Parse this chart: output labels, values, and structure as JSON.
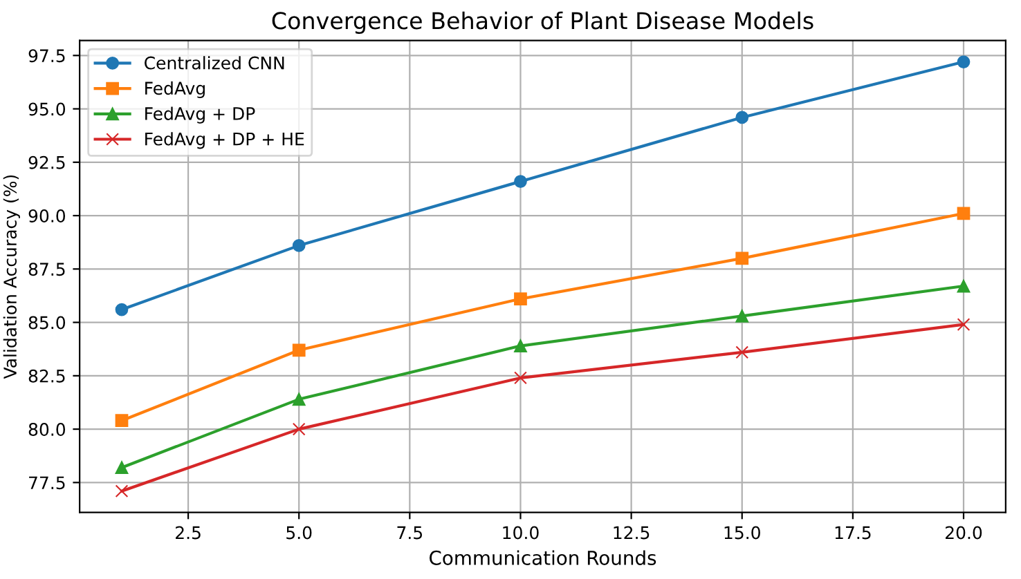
{
  "chart_data": {
    "type": "line",
    "title": "Convergence Behavior of Plant Disease Models",
    "xlabel": "Communication Rounds",
    "ylabel": "Validation Accuracy (%)",
    "x": [
      1,
      5,
      10,
      15,
      20
    ],
    "series": [
      {
        "name": "Centralized CNN",
        "color": "#1f77b4",
        "marker": "circle",
        "values": [
          85.6,
          88.6,
          91.6,
          94.6,
          97.2
        ]
      },
      {
        "name": "FedAvg",
        "color": "#ff7f0e",
        "marker": "square",
        "values": [
          80.4,
          83.7,
          86.1,
          88.0,
          90.1
        ]
      },
      {
        "name": "FedAvg + DP",
        "color": "#2ca02c",
        "marker": "triangle",
        "values": [
          78.2,
          81.4,
          83.9,
          85.3,
          86.7
        ]
      },
      {
        "name": "FedAvg + DP + HE",
        "color": "#d62728",
        "marker": "cross",
        "values": [
          77.1,
          80.0,
          82.4,
          83.6,
          84.9
        ]
      }
    ],
    "xlim": [
      0.05,
      20.95
    ],
    "ylim": [
      76.1,
      98.2
    ],
    "xticks": [
      {
        "value": 2.5,
        "label": "2.5"
      },
      {
        "value": 5,
        "label": "5.0"
      },
      {
        "value": 7.5,
        "label": "7.5"
      },
      {
        "value": 10,
        "label": "10.0"
      },
      {
        "value": 12.5,
        "label": "12.5"
      },
      {
        "value": 15,
        "label": "15.0"
      },
      {
        "value": 17.5,
        "label": "17.5"
      },
      {
        "value": 20,
        "label": "20.0"
      }
    ],
    "yticks": [
      {
        "value": 77.5,
        "label": "77.5"
      },
      {
        "value": 80,
        "label": "80.0"
      },
      {
        "value": 82.5,
        "label": "82.5"
      },
      {
        "value": 85,
        "label": "85.0"
      },
      {
        "value": 87.5,
        "label": "87.5"
      },
      {
        "value": 90,
        "label": "90.0"
      },
      {
        "value": 92.5,
        "label": "92.5"
      },
      {
        "value": 95,
        "label": "95.0"
      },
      {
        "value": 97.5,
        "label": "97.5"
      }
    ],
    "grid": true,
    "legend": "top left",
    "line_style": "solid"
  }
}
